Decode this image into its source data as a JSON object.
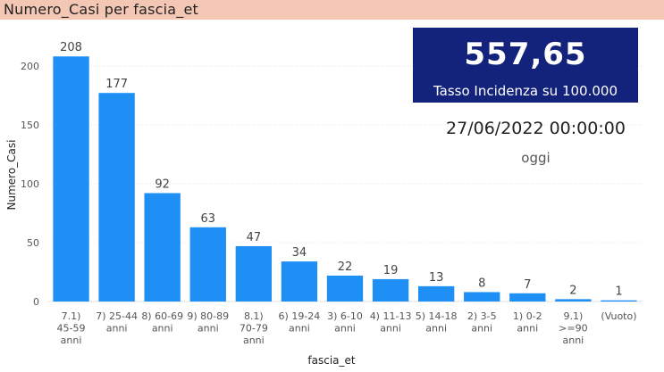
{
  "header": {
    "title": "Numero_Casi per fascia_et"
  },
  "kpi": {
    "value": "557,65",
    "label": "Tasso Incidenza su 100.000",
    "date": "27/06/2022 00:00:00",
    "date_label": "oggi"
  },
  "colors": {
    "bar": "#1e90f5",
    "header": "#f4c6b4",
    "kpi_bg": "#13227a"
  },
  "chart_data": {
    "type": "bar",
    "xlabel": "fascia_et",
    "ylabel": "Numero_Casi",
    "ylim": [
      0,
      215
    ],
    "yticks": [
      0,
      50,
      100,
      150,
      200
    ],
    "grid": true,
    "categories": [
      [
        "7.1)",
        "45-59",
        "anni"
      ],
      [
        "7) 25-44",
        "anni"
      ],
      [
        "8) 60-69",
        "anni"
      ],
      [
        "9) 80-89",
        "anni"
      ],
      [
        "8.1)",
        "70-79",
        "anni"
      ],
      [
        "6) 19-24",
        "anni"
      ],
      [
        "3) 6-10",
        "anni"
      ],
      [
        "4) 11-13",
        "anni"
      ],
      [
        "5) 14-18",
        "anni"
      ],
      [
        "2) 3-5",
        "anni"
      ],
      [
        "1) 0-2",
        "anni"
      ],
      [
        "9.1)",
        ">=90",
        "anni"
      ],
      [
        "(Vuoto)"
      ]
    ],
    "values": [
      208,
      177,
      92,
      63,
      47,
      34,
      22,
      19,
      13,
      8,
      7,
      2,
      1
    ]
  }
}
